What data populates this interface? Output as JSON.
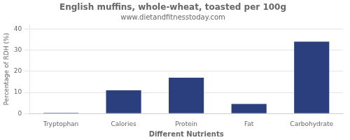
{
  "chart_data": {
    "type": "bar",
    "title": "English muffins, whole-wheat, toasted per 100g",
    "subtitle": "www.dietandfitnesstoday.com",
    "xlabel": "Different Nutrients",
    "ylabel": "Percentage of RDH (%)",
    "categories": [
      "Tryptophan",
      "Calories",
      "Protein",
      "Fat",
      "Carbohydrate"
    ],
    "values": [
      0.3,
      11,
      17,
      4.5,
      34
    ],
    "color": "#2B3F7E",
    "ylim": [
      0,
      42
    ],
    "yticks": [
      0,
      10,
      20,
      30,
      40
    ],
    "grid": true
  }
}
